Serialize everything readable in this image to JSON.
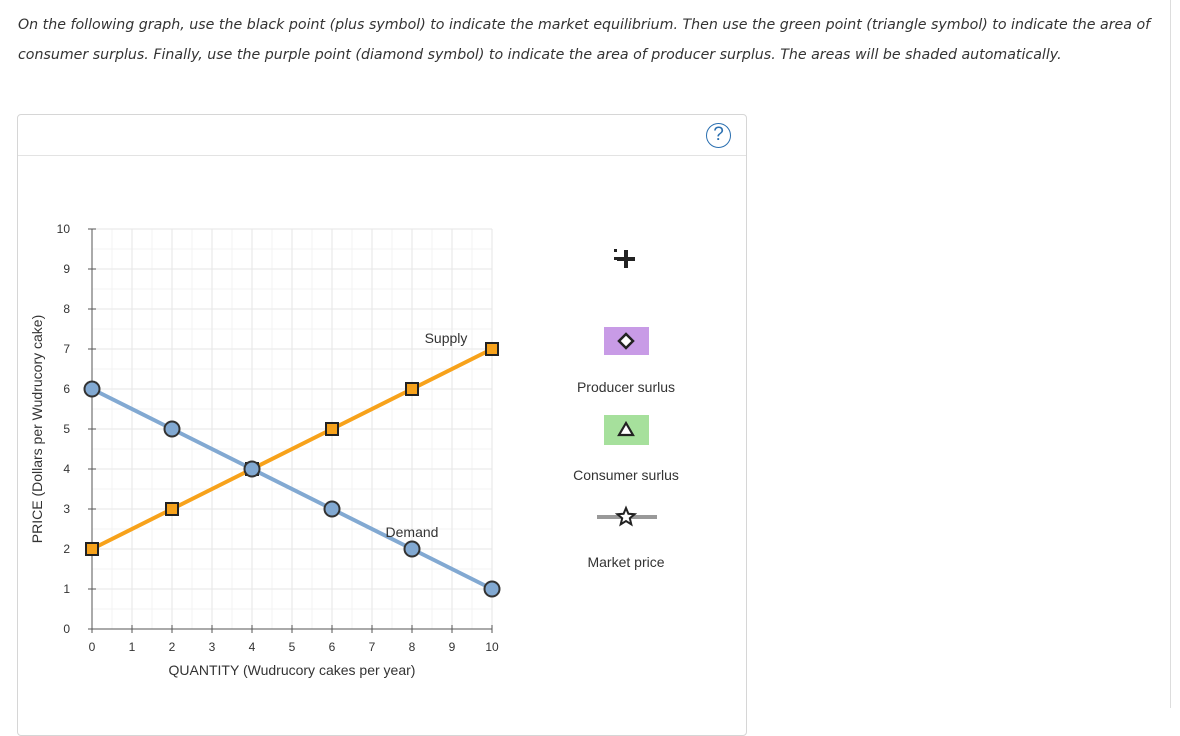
{
  "instructions": "On the following graph, use the black point (plus symbol) to indicate the market equilibrium. Then use the green point (triangle symbol) to indicate the area of consumer surplus. Finally, use the purple point (diamond symbol) to indicate the area of producer surplus. The areas will be shaded automatically.",
  "help_label": "?",
  "palette": {
    "producer_tool": "#c89be6",
    "consumer_tool": "#a6e09c",
    "market_price_line": "#999999",
    "supply": "#f7a21b",
    "demand": "#82a9d2"
  },
  "tools": {
    "market_equilibrium": {
      "icon": "plus-icon"
    },
    "producer_surplus": {
      "label": "Producer surlus",
      "icon": "diamond-icon"
    },
    "consumer_surplus": {
      "label": "Consumer surlus",
      "icon": "triangle-icon"
    },
    "market_price": {
      "label": "Market price",
      "icon": "star-icon"
    }
  },
  "chart_data": {
    "type": "line",
    "xlabel": "QUANTITY (Wudrucory cakes per year)",
    "ylabel": "PRICE (Dollars per Wudrucory cake)",
    "xlim": [
      0,
      10
    ],
    "ylim": [
      0,
      10
    ],
    "x_ticks": [
      "0",
      "1",
      "2",
      "3",
      "4",
      "5",
      "6",
      "7",
      "8",
      "9",
      "10"
    ],
    "y_ticks": [
      "0",
      "1",
      "2",
      "3",
      "4",
      "5",
      "6",
      "7",
      "8",
      "9",
      "10"
    ],
    "grid": true,
    "series": [
      {
        "name": "Supply",
        "marker": "square",
        "color": "#f7a21b",
        "points": [
          [
            0,
            2
          ],
          [
            2,
            3
          ],
          [
            4,
            4
          ],
          [
            6,
            5
          ],
          [
            8,
            6
          ],
          [
            10,
            7
          ]
        ]
      },
      {
        "name": "Demand",
        "marker": "circle",
        "color": "#82a9d2",
        "points": [
          [
            0,
            6
          ],
          [
            2,
            5
          ],
          [
            4,
            4
          ],
          [
            6,
            3
          ],
          [
            8,
            2
          ],
          [
            10,
            1
          ]
        ]
      }
    ]
  }
}
